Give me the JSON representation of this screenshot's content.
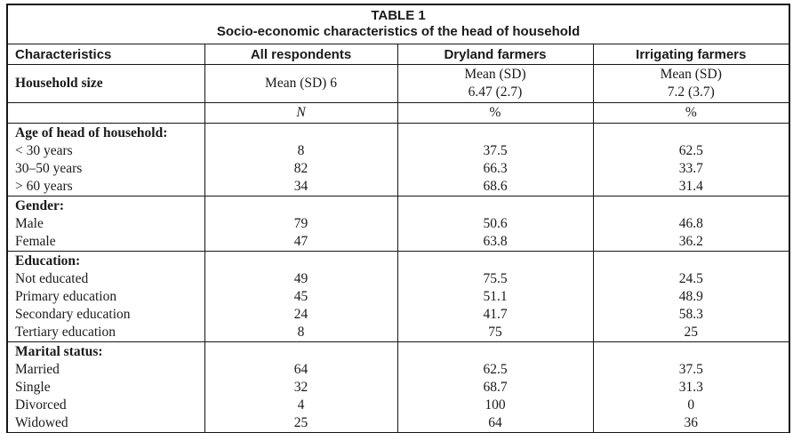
{
  "colors": {
    "background": "#ffffff",
    "text": "#1a1a1a",
    "border": "#161616"
  },
  "table": {
    "title": "TABLE 1",
    "subtitle": "Socio-economic characteristics of the head of household",
    "columns": [
      "Characteristics",
      "All respondents",
      "Dryland farmers",
      "Irrigating farmers"
    ],
    "household": {
      "label": "Household size",
      "all": "Mean (SD) 6",
      "dryland_line1": "Mean (SD)",
      "dryland_line2": "6.47 (2.7)",
      "irrigating_line1": "Mean (SD)",
      "irrigating_line2": "7.2 (3.7)"
    },
    "units": {
      "all": "N",
      "dryland": "%",
      "irrigating": "%"
    },
    "sections": [
      {
        "header": "Age of head of household:",
        "rows": [
          {
            "label": "< 30 years",
            "n": "8",
            "dryland_pct": "37.5",
            "irrigating_pct": "62.5"
          },
          {
            "label": "30–50 years",
            "n": "82",
            "dryland_pct": "66.3",
            "irrigating_pct": "33.7"
          },
          {
            "label": "> 60 years",
            "n": "34",
            "dryland_pct": "68.6",
            "irrigating_pct": "31.4"
          }
        ]
      },
      {
        "header": "Gender:",
        "rows": [
          {
            "label": "Male",
            "n": "79",
            "dryland_pct": "50.6",
            "irrigating_pct": "46.8"
          },
          {
            "label": "Female",
            "n": "47",
            "dryland_pct": "63.8",
            "irrigating_pct": "36.2"
          }
        ]
      },
      {
        "header": "Education:",
        "rows": [
          {
            "label": "Not educated",
            "n": "49",
            "dryland_pct": "75.5",
            "irrigating_pct": "24.5"
          },
          {
            "label": "Primary education",
            "n": "45",
            "dryland_pct": "51.1",
            "irrigating_pct": "48.9"
          },
          {
            "label": "Secondary education",
            "n": "24",
            "dryland_pct": "41.7",
            "irrigating_pct": "58.3"
          },
          {
            "label": "Tertiary education",
            "n": "8",
            "dryland_pct": "75",
            "irrigating_pct": "25"
          }
        ]
      },
      {
        "header": "Marital status:",
        "rows": [
          {
            "label": "Married",
            "n": "64",
            "dryland_pct": "62.5",
            "irrigating_pct": "37.5"
          },
          {
            "label": "Single",
            "n": "32",
            "dryland_pct": "68.7",
            "irrigating_pct": "31.3"
          },
          {
            "label": "Divorced",
            "n": "4",
            "dryland_pct": "100",
            "irrigating_pct": "0"
          },
          {
            "label": "Widowed",
            "n": "25",
            "dryland_pct": "64",
            "irrigating_pct": "36"
          }
        ]
      }
    ]
  }
}
